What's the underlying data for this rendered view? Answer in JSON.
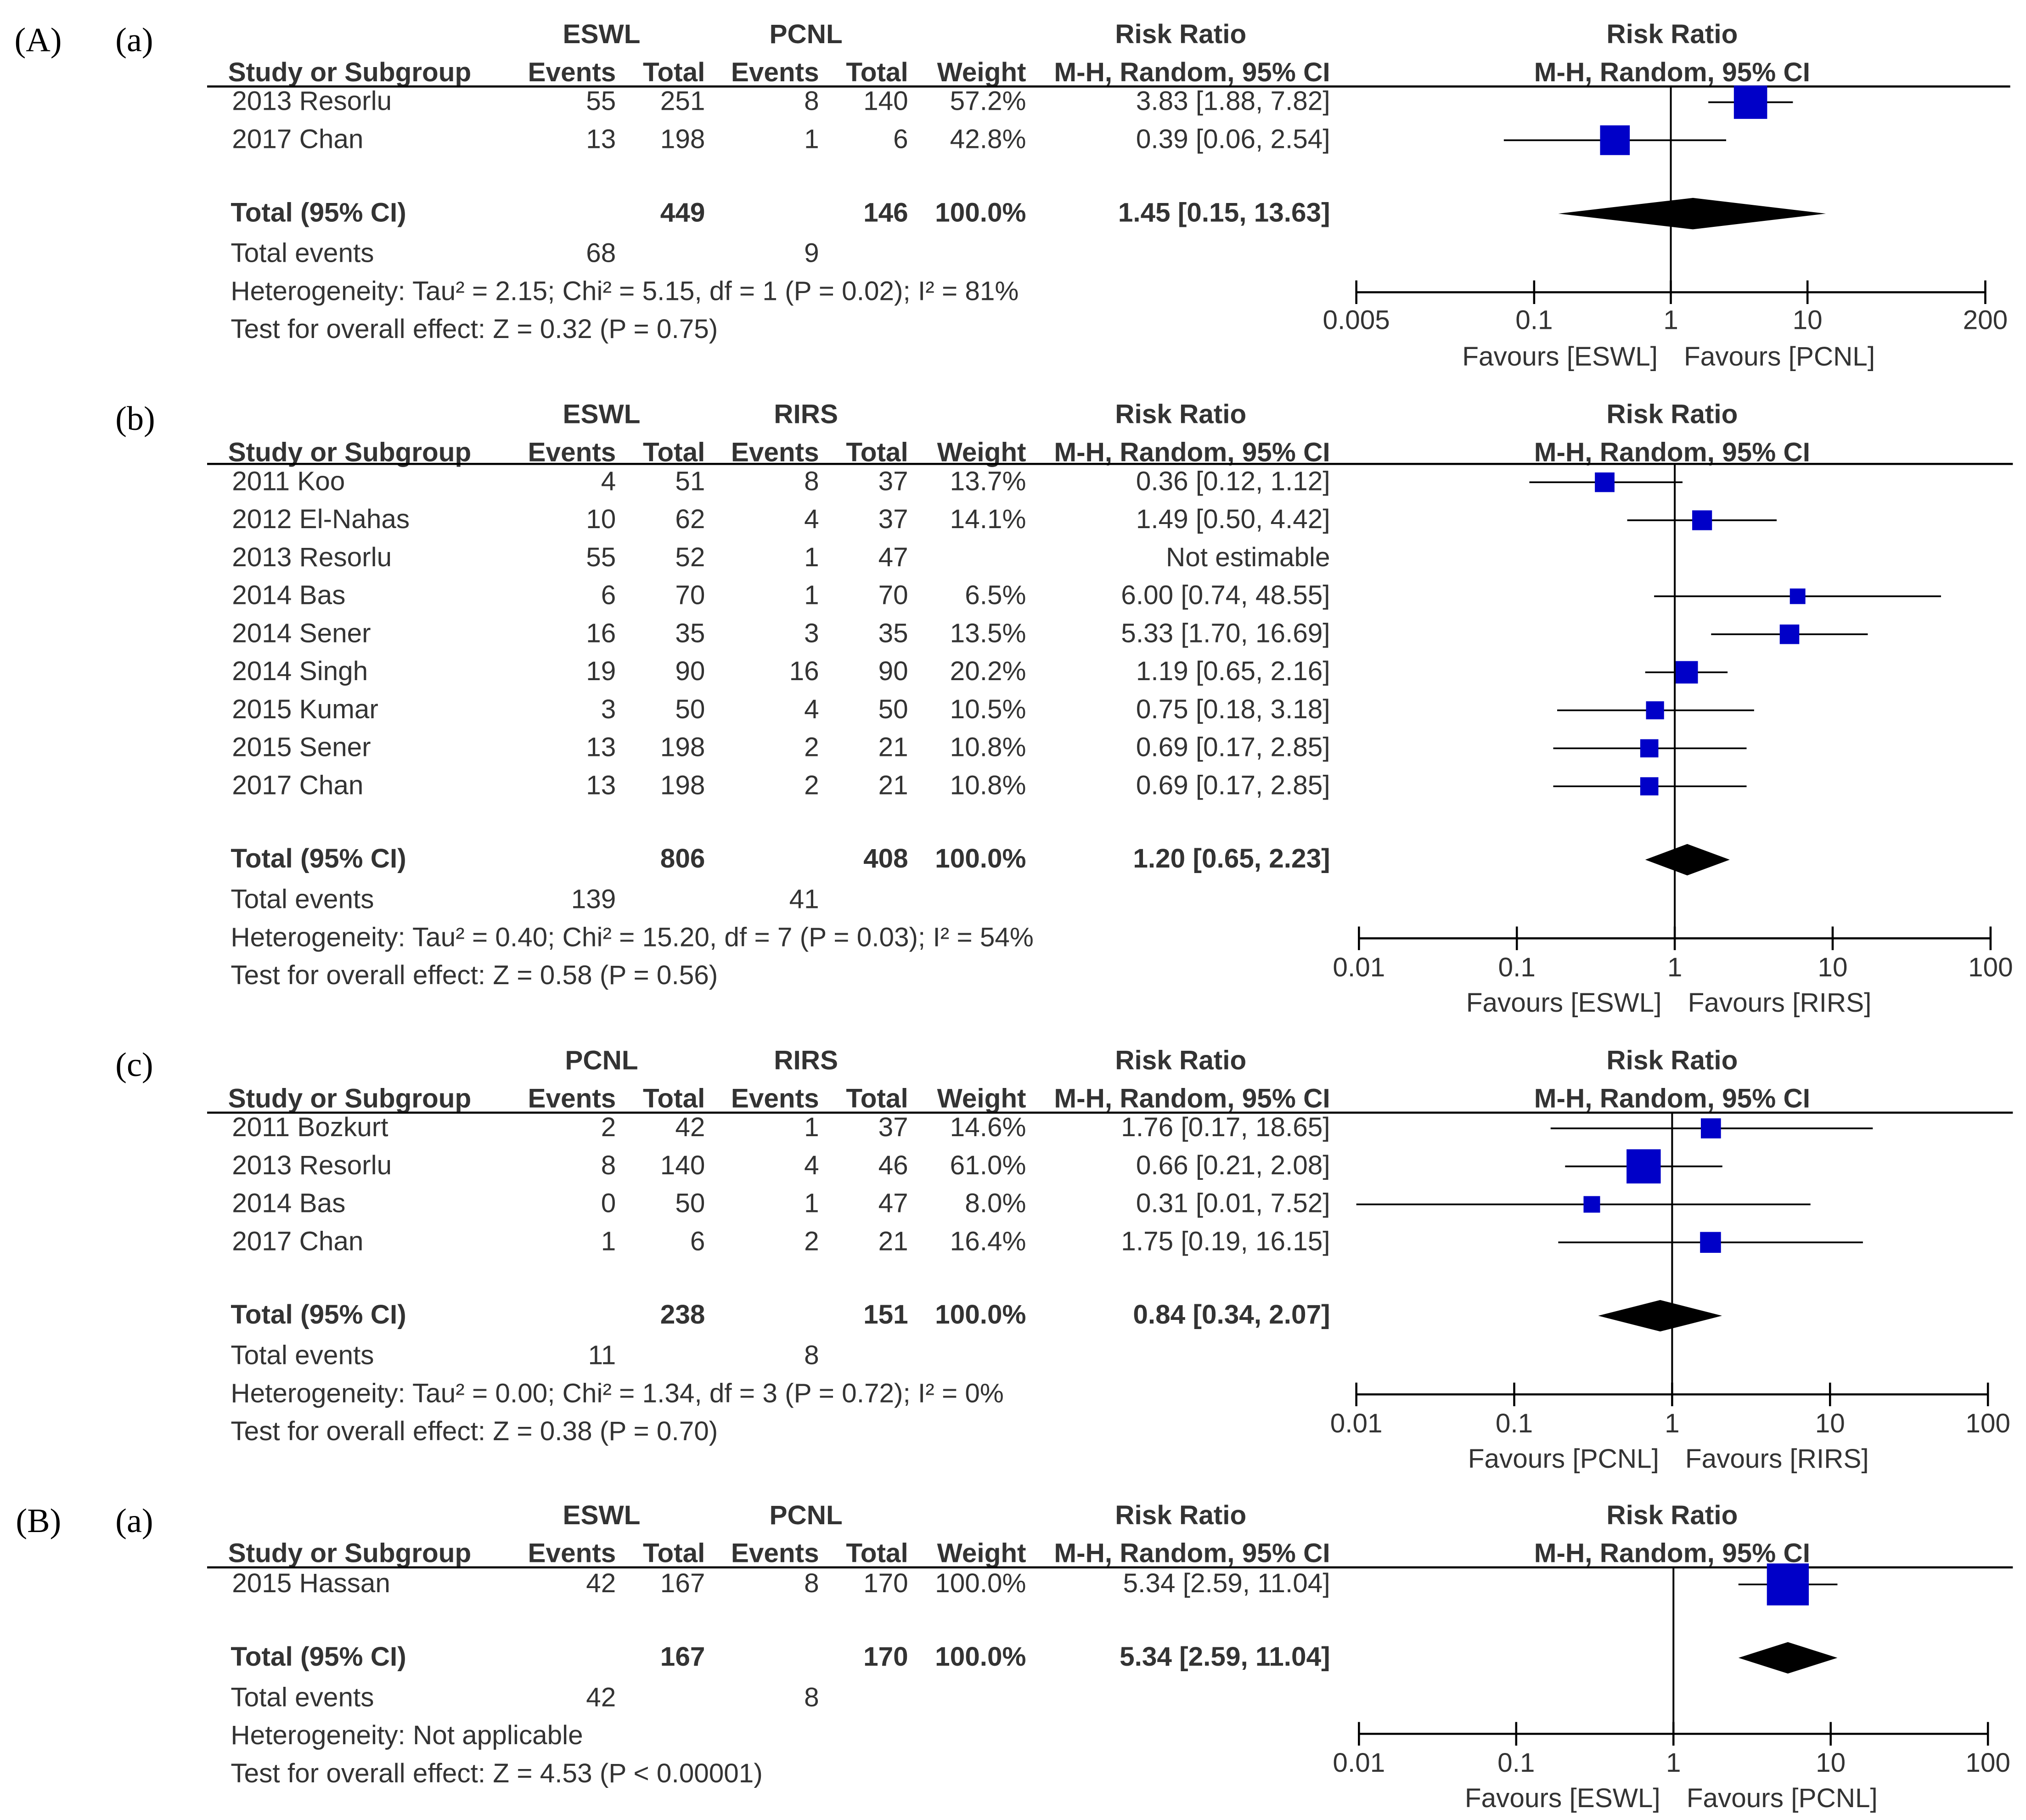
{
  "chart_data": [
    {
      "type": "forest",
      "figure_label": "(A)",
      "panel_label": "(a)",
      "group1": "ESWL",
      "group2": "PCNL",
      "header": {
        "study": "Study or Subgroup",
        "events": "Events",
        "total": "Total",
        "weight": "Weight",
        "effect": "Risk Ratio",
        "method": "M-H, Random, 95% CI"
      },
      "studies": [
        {
          "name": "2013 Resorlu",
          "e1": "55",
          "t1": "251",
          "e2": "8",
          "t2": "140",
          "weight": "57.2%",
          "ci_text": "3.83 [1.88, 7.82]",
          "rr": 3.83,
          "lo": 1.88,
          "hi": 7.82,
          "w": 57.2
        },
        {
          "name": "2017 Chan",
          "e1": "13",
          "t1": "198",
          "e2": "1",
          "t2": "6",
          "weight": "42.8%",
          "ci_text": "0.39 [0.06, 2.54]",
          "rr": 0.39,
          "lo": 0.06,
          "hi": 2.54,
          "w": 42.8
        }
      ],
      "total": {
        "label": "Total (95% CI)",
        "t1": "449",
        "t2": "146",
        "weight": "100.0%",
        "ci_text": "1.45 [0.15, 13.63]",
        "rr": 1.45,
        "lo": 0.15,
        "hi": 13.63
      },
      "total_events": {
        "label": "Total events",
        "e1": "68",
        "e2": "9"
      },
      "heterogeneity": "Heterogeneity: Tau² = 2.15; Chi² = 5.15, df = 1 (P = 0.02); I² = 81%",
      "overall": "Test for overall effect: Z = 0.32 (P = 0.75)",
      "axis": {
        "min": 0.005,
        "max": 200,
        "ticks": [
          0.005,
          0.1,
          1,
          10,
          200
        ],
        "tick_labels": [
          "0.005",
          "0.1",
          "1",
          "10",
          "200"
        ],
        "scale": "log"
      },
      "favours_left": "Favours [ESWL]",
      "favours_right": "Favours [PCNL]"
    },
    {
      "type": "forest",
      "figure_label": "",
      "panel_label": "(b)",
      "group1": "ESWL",
      "group2": "RIRS",
      "header": {
        "study": "Study or Subgroup",
        "events": "Events",
        "total": "Total",
        "weight": "Weight",
        "effect": "Risk Ratio",
        "method": "M-H, Random, 95% CI"
      },
      "studies": [
        {
          "name": "2011 Koo",
          "e1": "4",
          "t1": "51",
          "e2": "8",
          "t2": "37",
          "weight": "13.7%",
          "ci_text": "0.36 [0.12, 1.12]",
          "rr": 0.36,
          "lo": 0.12,
          "hi": 1.12,
          "w": 13.7
        },
        {
          "name": "2012 El-Nahas",
          "e1": "10",
          "t1": "62",
          "e2": "4",
          "t2": "37",
          "weight": "14.1%",
          "ci_text": "1.49 [0.50, 4.42]",
          "rr": 1.49,
          "lo": 0.5,
          "hi": 4.42,
          "w": 14.1
        },
        {
          "name": "2013 Resorlu",
          "e1": "55",
          "t1": "52",
          "e2": "1",
          "t2": "47",
          "weight": "",
          "ci_text": "Not estimable",
          "rr": null,
          "lo": null,
          "hi": null,
          "w": 0
        },
        {
          "name": "2014 Bas",
          "e1": "6",
          "t1": "70",
          "e2": "1",
          "t2": "70",
          "weight": "6.5%",
          "ci_text": "6.00 [0.74, 48.55]",
          "rr": 6.0,
          "lo": 0.74,
          "hi": 48.55,
          "w": 6.5
        },
        {
          "name": "2014 Sener",
          "e1": "16",
          "t1": "35",
          "e2": "3",
          "t2": "35",
          "weight": "13.5%",
          "ci_text": "5.33 [1.70, 16.69]",
          "rr": 5.33,
          "lo": 1.7,
          "hi": 16.69,
          "w": 13.5
        },
        {
          "name": "2014 Singh",
          "e1": "19",
          "t1": "90",
          "e2": "16",
          "t2": "90",
          "weight": "20.2%",
          "ci_text": "1.19 [0.65, 2.16]",
          "rr": 1.19,
          "lo": 0.65,
          "hi": 2.16,
          "w": 20.2
        },
        {
          "name": "2015 Kumar",
          "e1": "3",
          "t1": "50",
          "e2": "4",
          "t2": "50",
          "weight": "10.5%",
          "ci_text": "0.75 [0.18, 3.18]",
          "rr": 0.75,
          "lo": 0.18,
          "hi": 3.18,
          "w": 10.5
        },
        {
          "name": "2015 Sener",
          "e1": "13",
          "t1": "198",
          "e2": "2",
          "t2": "21",
          "weight": "10.8%",
          "ci_text": "0.69 [0.17, 2.85]",
          "rr": 0.69,
          "lo": 0.17,
          "hi": 2.85,
          "w": 10.8
        },
        {
          "name": "2017 Chan",
          "e1": "13",
          "t1": "198",
          "e2": "2",
          "t2": "21",
          "weight": "10.8%",
          "ci_text": "0.69 [0.17, 2.85]",
          "rr": 0.69,
          "lo": 0.17,
          "hi": 2.85,
          "w": 10.8
        }
      ],
      "total": {
        "label": "Total (95% CI)",
        "t1": "806",
        "t2": "408",
        "weight": "100.0%",
        "ci_text": "1.20 [0.65, 2.23]",
        "rr": 1.2,
        "lo": 0.65,
        "hi": 2.23
      },
      "total_events": {
        "label": "Total events",
        "e1": "139",
        "e2": "41"
      },
      "heterogeneity": "Heterogeneity: Tau² = 0.40; Chi² = 15.20, df = 7 (P = 0.03); I² = 54%",
      "overall": "Test for overall effect: Z = 0.58 (P = 0.56)",
      "axis": {
        "min": 0.01,
        "max": 100,
        "ticks": [
          0.01,
          0.1,
          1,
          10,
          100
        ],
        "tick_labels": [
          "0.01",
          "0.1",
          "1",
          "10",
          "100"
        ],
        "scale": "log"
      },
      "favours_left": "Favours [ESWL]",
      "favours_right": "Favours [RIRS]"
    },
    {
      "type": "forest",
      "figure_label": "",
      "panel_label": "(c)",
      "group1": "PCNL",
      "group2": "RIRS",
      "header": {
        "study": "Study or Subgroup",
        "events": "Events",
        "total": "Total",
        "weight": "Weight",
        "effect": "Risk Ratio",
        "method": "M-H, Random, 95% CI"
      },
      "studies": [
        {
          "name": "2011 Bozkurt",
          "e1": "2",
          "t1": "42",
          "e2": "1",
          "t2": "37",
          "weight": "14.6%",
          "ci_text": "1.76 [0.17, 18.65]",
          "rr": 1.76,
          "lo": 0.17,
          "hi": 18.65,
          "w": 14.6
        },
        {
          "name": "2013 Resorlu",
          "e1": "8",
          "t1": "140",
          "e2": "4",
          "t2": "46",
          "weight": "61.0%",
          "ci_text": "0.66 [0.21, 2.08]",
          "rr": 0.66,
          "lo": 0.21,
          "hi": 2.08,
          "w": 61.0
        },
        {
          "name": "2014 Bas",
          "e1": "0",
          "t1": "50",
          "e2": "1",
          "t2": "47",
          "weight": "8.0%",
          "ci_text": "0.31 [0.01, 7.52]",
          "rr": 0.31,
          "lo": 0.01,
          "hi": 7.52,
          "w": 8.0
        },
        {
          "name": "2017 Chan",
          "e1": "1",
          "t1": "6",
          "e2": "2",
          "t2": "21",
          "weight": "16.4%",
          "ci_text": "1.75 [0.19, 16.15]",
          "rr": 1.75,
          "lo": 0.19,
          "hi": 16.15,
          "w": 16.4
        }
      ],
      "total": {
        "label": "Total (95% CI)",
        "t1": "238",
        "t2": "151",
        "weight": "100.0%",
        "ci_text": "0.84 [0.34, 2.07]",
        "rr": 0.84,
        "lo": 0.34,
        "hi": 2.07
      },
      "total_events": {
        "label": "Total events",
        "e1": "11",
        "e2": "8"
      },
      "heterogeneity": "Heterogeneity: Tau² = 0.00; Chi² = 1.34, df = 3 (P = 0.72); I² = 0%",
      "overall": "Test for overall effect: Z = 0.38 (P = 0.70)",
      "axis": {
        "min": 0.01,
        "max": 100,
        "ticks": [
          0.01,
          0.1,
          1,
          10,
          100
        ],
        "tick_labels": [
          "0.01",
          "0.1",
          "1",
          "10",
          "100"
        ],
        "scale": "log"
      },
      "favours_left": "Favours [PCNL]",
      "favours_right": "Favours [RIRS]"
    },
    {
      "type": "forest",
      "figure_label": "(B)",
      "panel_label": "(a)",
      "group1": "ESWL",
      "group2": "PCNL",
      "header": {
        "study": "Study or Subgroup",
        "events": "Events",
        "total": "Total",
        "weight": "Weight",
        "effect": "Risk Ratio",
        "method": "M-H, Random, 95% CI"
      },
      "studies": [
        {
          "name": "2015 Hassan",
          "e1": "42",
          "t1": "167",
          "e2": "8",
          "t2": "170",
          "weight": "100.0%",
          "ci_text": "5.34 [2.59, 11.04]",
          "rr": 5.34,
          "lo": 2.59,
          "hi": 11.04,
          "w": 100.0
        }
      ],
      "total": {
        "label": "Total (95% CI)",
        "t1": "167",
        "t2": "170",
        "weight": "100.0%",
        "ci_text": "5.34 [2.59, 11.04]",
        "rr": 5.34,
        "lo": 2.59,
        "hi": 11.04
      },
      "total_events": {
        "label": "Total events",
        "e1": "42",
        "e2": "8"
      },
      "heterogeneity": "Heterogeneity: Not applicable",
      "overall": "Test for overall effect: Z = 4.53 (P < 0.00001)",
      "axis": {
        "min": 0.01,
        "max": 100,
        "ticks": [
          0.01,
          0.1,
          1,
          10,
          100
        ],
        "tick_labels": [
          "0.01",
          "0.1",
          "1",
          "10",
          "100"
        ],
        "scale": "log"
      },
      "favours_left": "Favours [ESWL]",
      "favours_right": "Favours [PCNL]"
    }
  ],
  "colors": {
    "marker": "#0000c8",
    "text": "#333333",
    "line": "#000000"
  }
}
